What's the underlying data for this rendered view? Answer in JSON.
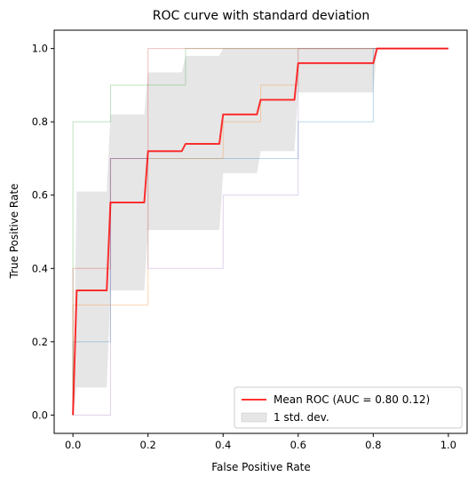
{
  "chart_data": {
    "type": "line",
    "title": "ROC curve with standard deviation",
    "xlabel": "False Positive Rate",
    "ylabel": "True Positive Rate",
    "xlim": [
      -0.05,
      1.05
    ],
    "ylim": [
      -0.05,
      1.05
    ],
    "x_ticks": [
      "0.0",
      "0.2",
      "0.4",
      "0.6",
      "0.8",
      "1.0"
    ],
    "y_ticks": [
      "0.0",
      "0.2",
      "0.4",
      "0.6",
      "0.8",
      "1.0"
    ],
    "grid": false,
    "legend_position": "lower-right",
    "fold_curves": [
      {
        "color": "#1f77b4",
        "x": [
          0,
          0,
          0.1,
          0.1,
          0.2,
          0.4,
          0.6,
          0.6,
          0.8,
          0.8,
          1.0
        ],
        "y": [
          0,
          0.2,
          0.2,
          0.7,
          0.7,
          0.7,
          0.7,
          0.8,
          0.8,
          1.0,
          1.0
        ]
      },
      {
        "color": "#ff7f0e",
        "x": [
          0,
          0,
          0.2,
          0.2,
          0.4,
          0.4,
          0.5,
          0.5,
          0.6,
          0.6,
          1.0
        ],
        "y": [
          0,
          0.3,
          0.3,
          0.7,
          0.7,
          0.8,
          0.8,
          0.9,
          0.9,
          1.0,
          1.0
        ]
      },
      {
        "color": "#2ca02c",
        "x": [
          0,
          0,
          0.1,
          0.1,
          0.3,
          0.3,
          1.0
        ],
        "y": [
          0,
          0.8,
          0.8,
          0.9,
          0.9,
          1.0,
          1.0
        ]
      },
      {
        "color": "#d62728",
        "x": [
          0,
          0,
          0.1,
          0.1,
          0.2,
          0.2,
          1.0
        ],
        "y": [
          0,
          0.4,
          0.4,
          0.7,
          0.7,
          1.0,
          1.0
        ]
      },
      {
        "color": "#9467bd",
        "x": [
          0,
          0.1,
          0.1,
          0.2,
          0.2,
          0.4,
          0.4,
          0.5,
          0.5,
          0.6,
          0.6,
          1.0
        ],
        "y": [
          0,
          0,
          0.7,
          0.7,
          0.4,
          0.4,
          0.6,
          0.6,
          0.6,
          0.6,
          1.0,
          1.0
        ]
      }
    ],
    "mean_roc": {
      "color": "#ff0000",
      "x": [
        0,
        0.01,
        0.09,
        0.1,
        0.19,
        0.2,
        0.29,
        0.3,
        0.39,
        0.4,
        0.49,
        0.5,
        0.59,
        0.6,
        0.8,
        0.81,
        1.0
      ],
      "y": [
        0,
        0.34,
        0.34,
        0.58,
        0.58,
        0.72,
        0.72,
        0.74,
        0.74,
        0.82,
        0.82,
        0.86,
        0.86,
        0.96,
        0.96,
        1.0,
        1.0
      ]
    },
    "std_band": {
      "color": "#808080",
      "x": [
        0,
        0.01,
        0.09,
        0.1,
        0.19,
        0.2,
        0.29,
        0.3,
        0.39,
        0.4,
        0.49,
        0.5,
        0.59,
        0.6,
        0.8,
        0.81,
        1.0
      ],
      "upper": [
        0,
        0.61,
        0.61,
        0.82,
        0.82,
        0.935,
        0.935,
        0.98,
        0.98,
        1.0,
        1.0,
        1.0,
        1.0,
        1.0,
        1.0,
        1.0,
        1.0
      ],
      "lower": [
        0,
        0.075,
        0.075,
        0.34,
        0.34,
        0.505,
        0.505,
        0.505,
        0.505,
        0.66,
        0.66,
        0.72,
        0.72,
        0.88,
        0.88,
        1.0,
        1.0
      ]
    },
    "legend": [
      {
        "label": "Mean ROC (AUC = 0.80 0.12)",
        "kind": "line",
        "color": "#ff0000"
      },
      {
        "label": "1 std. dev.",
        "kind": "patch",
        "color": "#808080"
      }
    ]
  }
}
